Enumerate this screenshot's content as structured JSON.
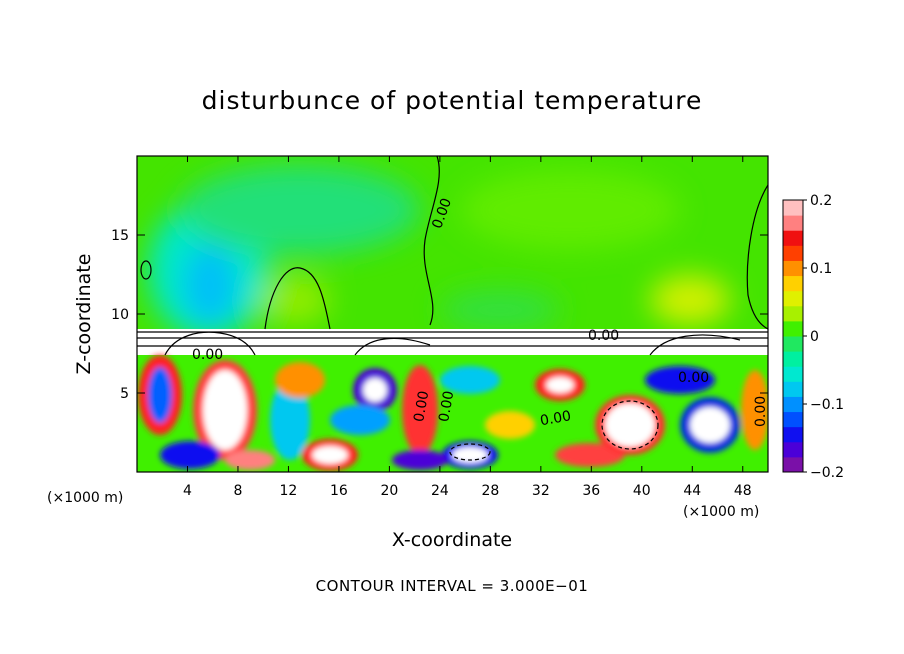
{
  "chart_data": {
    "type": "heatmap",
    "title": "disturbunce of potential temperature",
    "xlabel": "X-coordinate",
    "ylabel": "Z-coordinate",
    "x_unit": "(×1000 m)",
    "z_unit": "(×1000 m)",
    "xlim": [
      0,
      50
    ],
    "ylim": [
      0,
      20
    ],
    "x_ticks": [
      4,
      8,
      12,
      16,
      20,
      24,
      28,
      32,
      36,
      40,
      44,
      48
    ],
    "y_ticks": [
      5,
      10,
      15
    ],
    "colorbar": {
      "range": [
        -0.2,
        0.2
      ],
      "tick_labels": [
        "0.2",
        "0.1",
        "0",
        "−0.1",
        "−0.2"
      ],
      "tick_values": [
        0.2,
        0.1,
        0,
        -0.1,
        -0.2
      ],
      "colors": [
        "#7a10a8",
        "#4b00d8",
        "#1010f0",
        "#0050ff",
        "#0090ff",
        "#00c8f0",
        "#00e8d0",
        "#00f0a0",
        "#20e860",
        "#40f000",
        "#a8f000",
        "#e0f000",
        "#ffd000",
        "#ff9000",
        "#ff4000",
        "#f01010",
        "#ff8080",
        "#ffc0c0"
      ]
    },
    "contour_labels": [
      "0.00",
      "0.00",
      "0.00",
      "0.00",
      "0.00",
      "0.00",
      "0.00",
      "0.00"
    ],
    "contour_interval_text": "CONTOUR INTERVAL = 3.000E−01"
  }
}
